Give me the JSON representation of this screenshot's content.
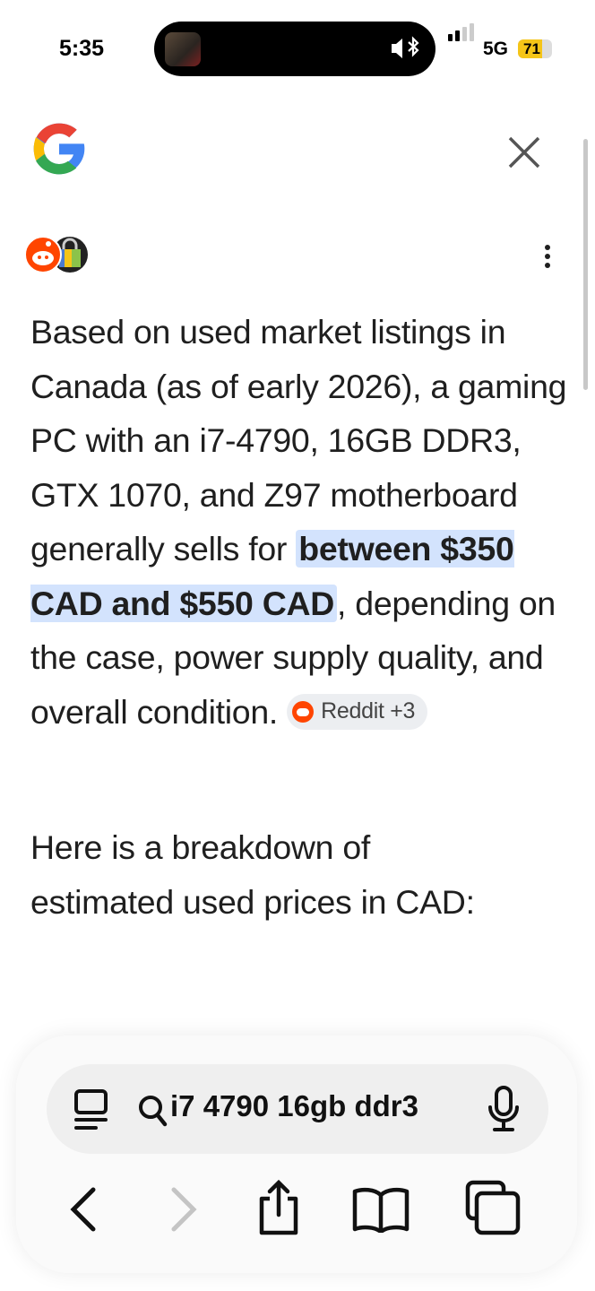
{
  "status_bar": {
    "time": "5:35",
    "network": "5G",
    "battery": "71",
    "battery_level": 0.71,
    "battery_color": "#f5c518"
  },
  "header": {
    "logo": "google-g-logo",
    "close_icon": "close-icon"
  },
  "sources": {
    "icons": [
      "reddit-icon",
      "shopping-bag-icon"
    ],
    "menu_icon": "more-vertical-icon"
  },
  "answer": {
    "text_before": "Based on used market listings in Canada (as of early 2026), a gaming PC with an i7-4790, 16GB DDR3, GTX 1070, and Z97 motherboard generally sells for ",
    "highlight": "between $350 CAD and $550 CAD",
    "text_after": ", depending on the case, power supply quality, and overall condition. ",
    "citation": "Reddit +3",
    "highlight_color": "#d3e3fd",
    "paragraph2": "Here is a breakdown of estimated used prices in CAD:"
  },
  "toolbar": {
    "search_query": "i7 4790 16gb ddr3",
    "icons": [
      "reader-icon",
      "search-icon",
      "microphone-icon",
      "back-icon",
      "forward-icon",
      "share-icon",
      "bookmarks-icon",
      "tabs-icon"
    ]
  }
}
